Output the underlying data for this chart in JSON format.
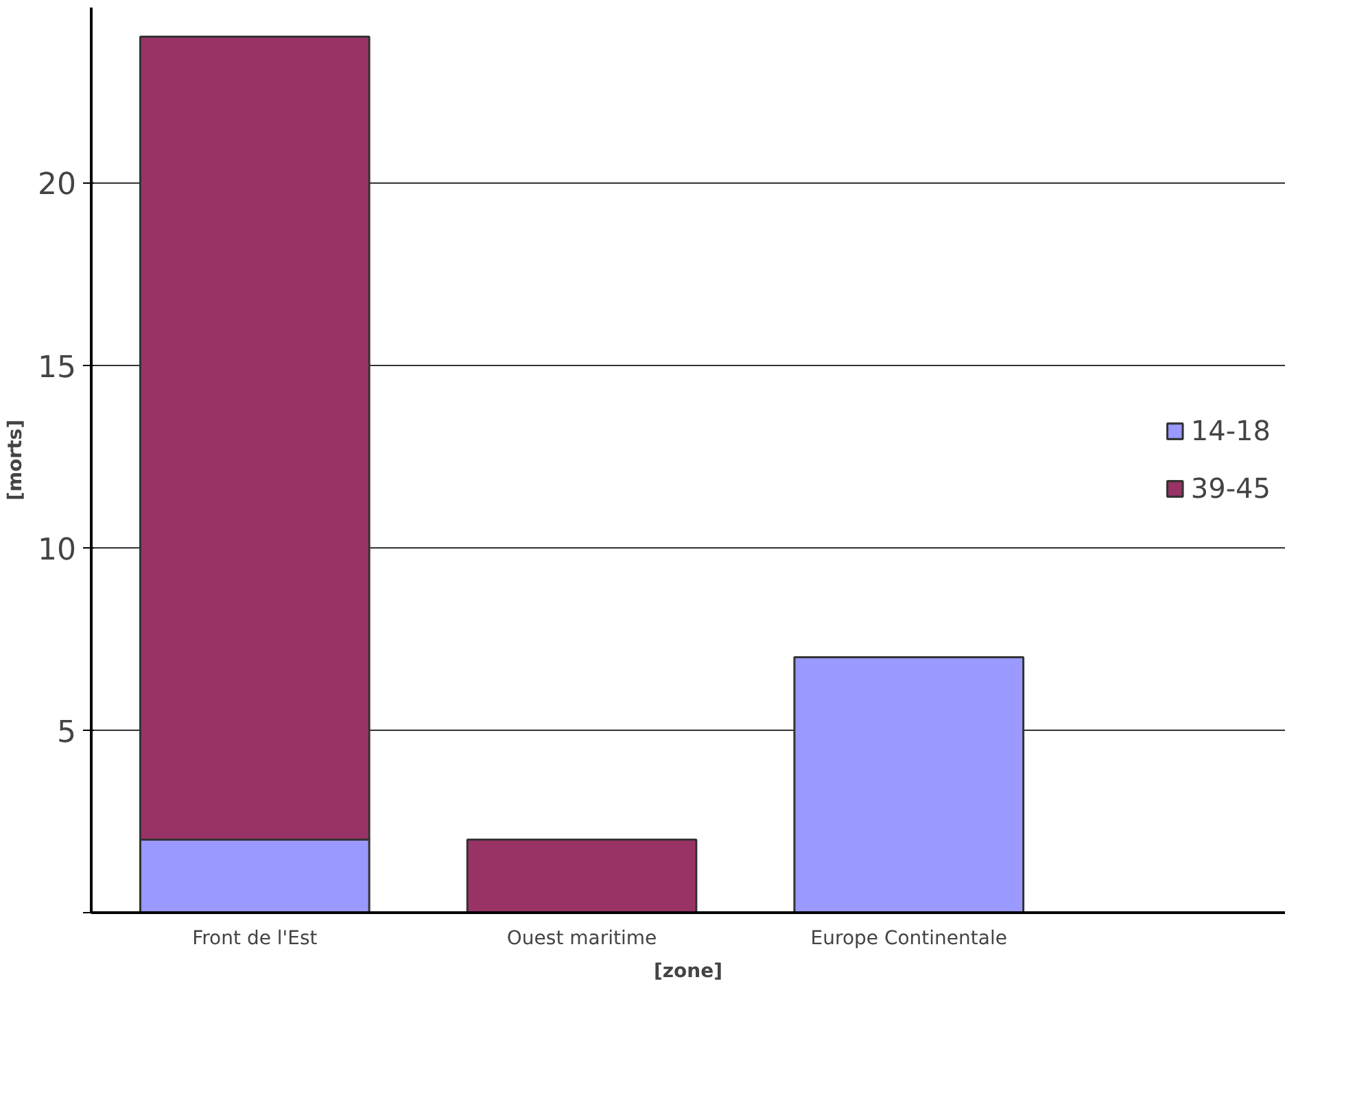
{
  "chart_data": {
    "type": "bar",
    "stacked": true,
    "xlabel": "[zone]",
    "ylabel": "[morts]",
    "categories": [
      "Front de l'Est",
      "Ouest maritime",
      "Europe Continentale"
    ],
    "series": [
      {
        "name": "14-18",
        "color": "#9999ff",
        "values": [
          2,
          null,
          7
        ]
      },
      {
        "name": "39-45",
        "color": "#993366",
        "values": [
          22,
          2,
          null
        ]
      }
    ],
    "ylim": [
      0,
      24.8
    ],
    "yticks": [
      {
        "value": 0,
        "label": null
      },
      5,
      10,
      15,
      20
    ],
    "grid": "y",
    "legend": "right"
  }
}
